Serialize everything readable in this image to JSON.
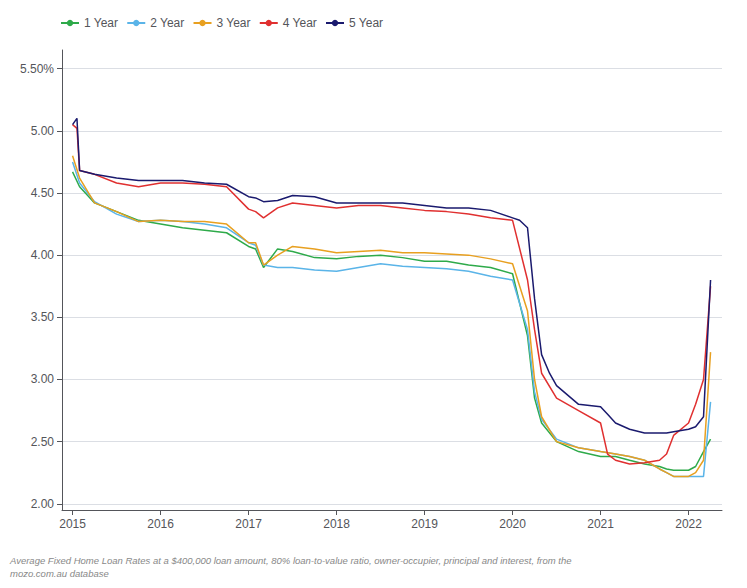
{
  "chart_data": {
    "type": "line",
    "footnote": "Average Fixed Home Loan Rates at a $400,000 loan amount, 80% loan-to-value ratio, owner-occupier, principal and interest, from the\nmozo.com.au database",
    "legend": "upper left",
    "grid": "y",
    "xlim": [
      2014.88,
      2022.38
    ],
    "xticks": [
      2015,
      2016,
      2017,
      2018,
      2019,
      2020,
      2021,
      2022
    ],
    "ylim": [
      1.95,
      5.65
    ],
    "yticks": [
      {
        "value": 2.0,
        "label": "2.00"
      },
      {
        "value": 2.5,
        "label": "2.50"
      },
      {
        "value": 3.0,
        "label": "3.00"
      },
      {
        "value": 3.5,
        "label": "3.50"
      },
      {
        "value": 4.0,
        "label": "4.00"
      },
      {
        "value": 4.5,
        "label": "4.50"
      },
      {
        "value": 5.0,
        "label": "5.00"
      },
      {
        "value": 5.5,
        "label": "5.50%"
      }
    ],
    "series": [
      {
        "name": "1 Year",
        "color": "#2eaa4a",
        "x": [
          2015.0,
          2015.08,
          2015.25,
          2015.5,
          2015.75,
          2016.0,
          2016.25,
          2016.5,
          2016.75,
          2017.0,
          2017.08,
          2017.17,
          2017.33,
          2017.5,
          2017.75,
          2018.0,
          2018.25,
          2018.5,
          2018.75,
          2019.0,
          2019.25,
          2019.5,
          2019.75,
          2020.0,
          2020.17,
          2020.25,
          2020.33,
          2020.5,
          2020.75,
          2021.0,
          2021.17,
          2021.33,
          2021.5,
          2021.67,
          2021.75,
          2021.83,
          2022.0,
          2022.08,
          2022.17,
          2022.25
        ],
        "values": [
          4.67,
          4.55,
          4.42,
          4.35,
          4.28,
          4.25,
          4.22,
          4.2,
          4.18,
          4.07,
          4.05,
          3.9,
          4.05,
          4.03,
          3.98,
          3.97,
          3.99,
          4.0,
          3.98,
          3.95,
          3.95,
          3.92,
          3.9,
          3.85,
          3.35,
          2.85,
          2.65,
          2.5,
          2.42,
          2.38,
          2.38,
          2.35,
          2.32,
          2.3,
          2.28,
          2.27,
          2.27,
          2.3,
          2.42,
          2.52
        ]
      },
      {
        "name": "2 Year",
        "color": "#5ab4e8",
        "x": [
          2015.0,
          2015.08,
          2015.25,
          2015.5,
          2015.75,
          2016.0,
          2016.25,
          2016.5,
          2016.75,
          2017.0,
          2017.08,
          2017.17,
          2017.33,
          2017.5,
          2017.75,
          2018.0,
          2018.25,
          2018.5,
          2018.75,
          2019.0,
          2019.25,
          2019.5,
          2019.75,
          2020.0,
          2020.17,
          2020.25,
          2020.33,
          2020.5,
          2020.75,
          2021.0,
          2021.17,
          2021.33,
          2021.5,
          2021.67,
          2021.75,
          2021.83,
          2022.0,
          2022.08,
          2022.17,
          2022.25
        ],
        "values": [
          4.75,
          4.58,
          4.43,
          4.33,
          4.27,
          4.28,
          4.27,
          4.25,
          4.22,
          4.1,
          4.08,
          3.92,
          3.9,
          3.9,
          3.88,
          3.87,
          3.9,
          3.93,
          3.91,
          3.9,
          3.89,
          3.87,
          3.83,
          3.8,
          3.4,
          2.9,
          2.68,
          2.52,
          2.45,
          2.42,
          2.4,
          2.38,
          2.35,
          2.28,
          2.25,
          2.22,
          2.22,
          2.22,
          2.22,
          2.82
        ]
      },
      {
        "name": "3 Year",
        "color": "#e8a020",
        "x": [
          2015.0,
          2015.08,
          2015.25,
          2015.5,
          2015.75,
          2016.0,
          2016.25,
          2016.5,
          2016.75,
          2017.0,
          2017.08,
          2017.17,
          2017.33,
          2017.5,
          2017.75,
          2018.0,
          2018.25,
          2018.5,
          2018.75,
          2019.0,
          2019.25,
          2019.5,
          2019.75,
          2020.0,
          2020.17,
          2020.25,
          2020.33,
          2020.5,
          2020.75,
          2021.0,
          2021.17,
          2021.33,
          2021.5,
          2021.67,
          2021.75,
          2021.83,
          2022.0,
          2022.08,
          2022.17,
          2022.25
        ],
        "values": [
          4.8,
          4.62,
          4.42,
          4.35,
          4.27,
          4.28,
          4.27,
          4.27,
          4.25,
          4.1,
          4.1,
          3.92,
          4.0,
          4.07,
          4.05,
          4.02,
          4.03,
          4.04,
          4.02,
          4.02,
          4.01,
          4.0,
          3.97,
          3.93,
          3.55,
          3.0,
          2.7,
          2.5,
          2.45,
          2.42,
          2.4,
          2.38,
          2.35,
          2.28,
          2.25,
          2.22,
          2.22,
          2.25,
          2.35,
          3.22
        ]
      },
      {
        "name": "4 Year",
        "color": "#e03030",
        "x": [
          2015.0,
          2015.05,
          2015.08,
          2015.25,
          2015.5,
          2015.75,
          2016.0,
          2016.25,
          2016.5,
          2016.75,
          2017.0,
          2017.08,
          2017.17,
          2017.33,
          2017.5,
          2017.75,
          2018.0,
          2018.25,
          2018.5,
          2018.75,
          2019.0,
          2019.25,
          2019.5,
          2019.75,
          2020.0,
          2020.17,
          2020.25,
          2020.33,
          2020.5,
          2020.75,
          2021.0,
          2021.08,
          2021.17,
          2021.33,
          2021.5,
          2021.67,
          2021.75,
          2021.83,
          2022.0,
          2022.08,
          2022.17,
          2022.25
        ],
        "values": [
          5.05,
          5.02,
          4.68,
          4.65,
          4.58,
          4.55,
          4.58,
          4.58,
          4.57,
          4.55,
          4.37,
          4.35,
          4.3,
          4.38,
          4.42,
          4.4,
          4.38,
          4.4,
          4.4,
          4.38,
          4.36,
          4.35,
          4.33,
          4.3,
          4.28,
          3.8,
          3.4,
          3.05,
          2.85,
          2.75,
          2.65,
          2.4,
          2.35,
          2.32,
          2.33,
          2.35,
          2.4,
          2.55,
          2.65,
          2.8,
          3.0,
          3.75
        ]
      },
      {
        "name": "5 Year",
        "color": "#1a1a6e",
        "x": [
          2015.0,
          2015.05,
          2015.08,
          2015.25,
          2015.5,
          2015.75,
          2016.0,
          2016.25,
          2016.5,
          2016.75,
          2017.0,
          2017.08,
          2017.17,
          2017.33,
          2017.5,
          2017.75,
          2018.0,
          2018.25,
          2018.5,
          2018.75,
          2019.0,
          2019.25,
          2019.5,
          2019.75,
          2020.0,
          2020.08,
          2020.17,
          2020.25,
          2020.33,
          2020.42,
          2020.5,
          2020.75,
          2021.0,
          2021.08,
          2021.17,
          2021.33,
          2021.5,
          2021.67,
          2021.75,
          2021.83,
          2022.0,
          2022.08,
          2022.17,
          2022.25
        ],
        "values": [
          5.05,
          5.1,
          4.68,
          4.65,
          4.62,
          4.6,
          4.6,
          4.6,
          4.58,
          4.57,
          4.47,
          4.46,
          4.43,
          4.44,
          4.48,
          4.47,
          4.42,
          4.42,
          4.42,
          4.42,
          4.4,
          4.38,
          4.38,
          4.36,
          4.3,
          4.28,
          4.22,
          3.65,
          3.2,
          3.05,
          2.95,
          2.8,
          2.78,
          2.72,
          2.65,
          2.6,
          2.57,
          2.57,
          2.57,
          2.58,
          2.6,
          2.62,
          2.7,
          3.8
        ]
      }
    ]
  }
}
